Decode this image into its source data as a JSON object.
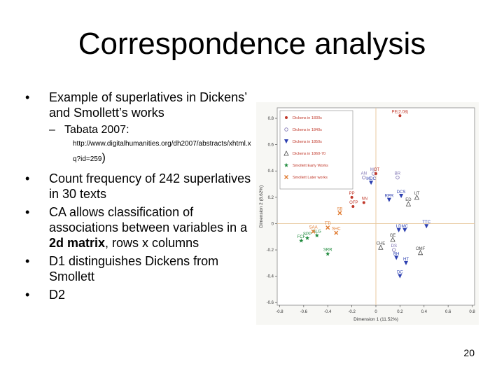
{
  "slide": {
    "title": "Correspondence analysis",
    "bullets": [
      {
        "text": "Example of superlatives in Dickens’ and Smollett’s works"
      },
      {
        "sub": "Tabata 2007:",
        "url": "http://www.digitalhumanities.org/dh2007/abstracts/xhtml.xq?id=259",
        "url_close": ")"
      },
      {
        "text_before": "Count frequency of 242 superlatives in 30 texts"
      },
      {
        "text_before": "CA allows classification of associations between variables in a ",
        "bold": "2d matrix",
        "text_after": ", rows x columns"
      },
      {
        "text": "D1 distinguishes Dickens from Smollett"
      },
      {
        "text": "D2"
      }
    ],
    "page_number": "20"
  },
  "chart_data": {
    "type": "scatter",
    "xlabel": "Dimension 1 (11.52%)",
    "ylabel": "Dimension 2 (8.62%)",
    "xlim": [
      -0.82,
      0.82
    ],
    "ylim": [
      -0.62,
      0.88
    ],
    "xticks": [
      "-0.8",
      "-0.6",
      "-0.4",
      "-0.2",
      "0",
      "0.2",
      "0.4",
      "0.6",
      "0.8"
    ],
    "yticks": [
      "0.8",
      "0.6",
      "0.4",
      "0.2",
      "0",
      "-0.2",
      "-0.4",
      "-0.6"
    ],
    "grid": false,
    "legend_position": "top-left",
    "series": [
      {
        "name": "Dickens in 1830s",
        "marker": "circle-filled",
        "color": "#c0392b",
        "points": [
          {
            "label": "PE(2.08)",
            "x": 0.2,
            "y": 0.82
          },
          {
            "label": "PP",
            "x": -0.2,
            "y": 0.2
          }
        ]
      },
      {
        "name": "Dickens in 1840s",
        "marker": "circle-open",
        "color": "#7a6fb0",
        "points": [
          {
            "label": "AN",
            "x": -0.1,
            "y": 0.35
          },
          {
            "label": "MC",
            "x": -0.02,
            "y": 0.38
          },
          {
            "label": "BR",
            "x": 0.18,
            "y": 0.35
          },
          {
            "label": "DS",
            "x": 0.15,
            "y": -0.2
          }
        ]
      },
      {
        "name": "Dickens in 1850s",
        "marker": "triangle-down",
        "color": "#2c3fb0",
        "points": [
          {
            "label": "MDC",
            "x": -0.04,
            "y": 0.31
          },
          {
            "label": "DCS",
            "x": 0.21,
            "y": 0.21
          },
          {
            "label": "RPR",
            "x": 0.11,
            "y": 0.18
          },
          {
            "label": "LD",
            "x": 0.19,
            "y": -0.05
          },
          {
            "label": "MC",
            "x": 0.24,
            "y": -0.05
          },
          {
            "label": "TTC",
            "x": 0.42,
            "y": -0.02
          },
          {
            "label": "BH",
            "x": 0.17,
            "y": -0.26
          },
          {
            "label": "HT",
            "x": 0.25,
            "y": -0.3
          },
          {
            "label": "DC",
            "x": 0.2,
            "y": -0.4
          }
        ]
      },
      {
        "name": "Dickens in 1860-70",
        "marker": "triangle-open",
        "color": "#444444",
        "points": [
          {
            "label": "UT",
            "x": 0.34,
            "y": 0.2
          },
          {
            "label": "ED",
            "x": 0.27,
            "y": 0.15
          },
          {
            "label": "GE",
            "x": 0.14,
            "y": -0.12
          },
          {
            "label": "OMF",
            "x": 0.37,
            "y": -0.22
          },
          {
            "label": "CHE",
            "x": 0.04,
            "y": -0.18
          }
        ]
      },
      {
        "name": "Smollett Early Works",
        "marker": "star",
        "color": "#1e8a3c",
        "points": [
          {
            "label": "FCF",
            "x": -0.62,
            "y": -0.13
          },
          {
            "label": "SPP",
            "x": -0.57,
            "y": -0.11
          },
          {
            "label": "SLG",
            "x": -0.49,
            "y": -0.09
          },
          {
            "label": "SRR",
            "x": -0.4,
            "y": -0.23
          }
        ]
      },
      {
        "name": "Smollett Later works",
        "marker": "cross",
        "color": "#e07a2f",
        "points": [
          {
            "label": "SAA",
            "x": -0.52,
            "y": -0.06
          },
          {
            "label": "TTI",
            "x": -0.4,
            "y": -0.03
          },
          {
            "label": "SHC",
            "x": -0.33,
            "y": -0.07
          },
          {
            "label": "SB",
            "x": -0.3,
            "y": 0.08
          }
        ]
      }
    ],
    "extra_labels": [
      {
        "label": "NN",
        "x": -0.1,
        "y": 0.16,
        "series": 0
      },
      {
        "label": "OT",
        "x": 0.0,
        "y": 0.38,
        "series": 0
      },
      {
        "label": "OFP",
        "x": -0.19,
        "y": 0.13,
        "series": 0
      }
    ]
  }
}
